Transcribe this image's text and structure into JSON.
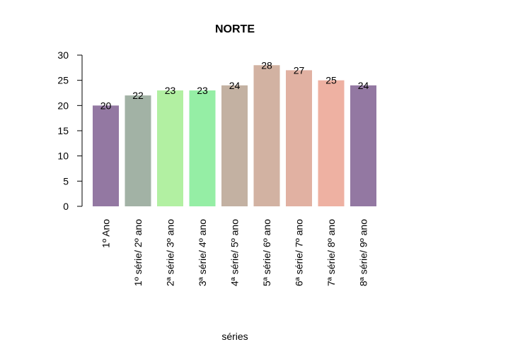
{
  "chart_data": {
    "type": "bar",
    "title": "NORTE",
    "xlabel": "séries",
    "ylabel": "",
    "ylim": [
      0,
      30
    ],
    "yticks": [
      0,
      5,
      10,
      15,
      20,
      25,
      30
    ],
    "grid": false,
    "legend": "none",
    "categories": [
      "1º Ano",
      "1º série/ 2º ano",
      "2ª série/ 3º ano",
      "3ª série/ 4º ano",
      "4ª série/ 5º ano",
      "5ª série/ 6º ano",
      "6ª série/ 7º ano",
      "7ª série/ 8º ano",
      "8ª série/ 9º ano"
    ],
    "values": [
      20,
      22,
      23,
      23,
      24,
      28,
      27,
      25,
      24
    ],
    "colors": [
      "#9378a2",
      "#a2b2a5",
      "#b2f0a2",
      "#95ee a5",
      "#c3b1a2",
      "#d2b2a2",
      "#e1b1a2",
      "#eeb1a2",
      "#9378a2"
    ]
  }
}
